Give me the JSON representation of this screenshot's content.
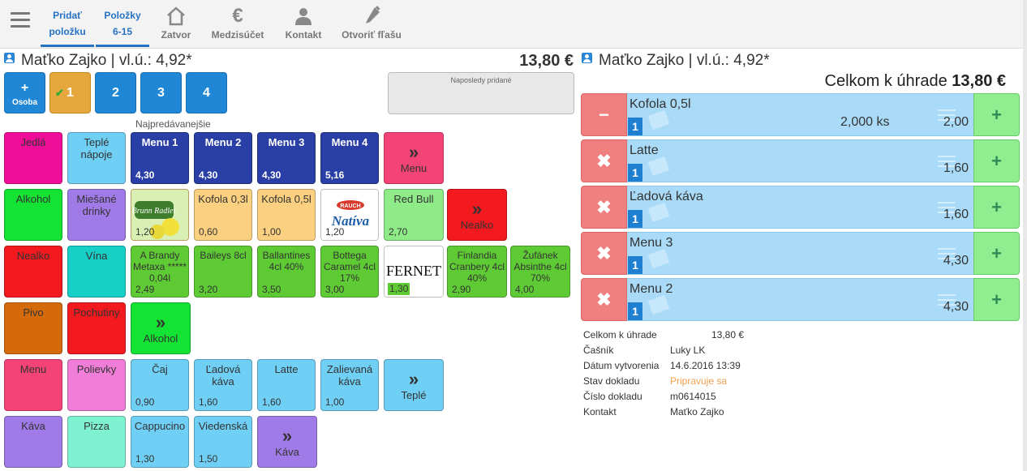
{
  "toolbar": {
    "tabs": [
      {
        "line1": "Pridať",
        "line2": "položku"
      },
      {
        "line1": "Položky",
        "line2": "6-15"
      }
    ],
    "buttons": [
      {
        "label": "Zatvor",
        "icon": "home-icon"
      },
      {
        "label": "Medzisúčet",
        "icon": "euro-icon"
      },
      {
        "label": "Kontakt",
        "icon": "person-icon"
      },
      {
        "label": "Otvoriť fľašu",
        "icon": "bottle-icon"
      }
    ]
  },
  "customer": {
    "name": "Maťko Zajko | vl.ú.: 4,92*"
  },
  "order_total": "13,80 €",
  "seats": {
    "osoba_top": "+",
    "osoba_label": "Osoba",
    "items": [
      "1",
      "2",
      "3",
      "4"
    ]
  },
  "last_added_label": "Naposledy pridané",
  "best_selling_label": "Najpredávanejšie",
  "tiles": [
    {
      "label": "Jedlá",
      "price": "",
      "color": "#f00d97"
    },
    {
      "label": "Teplé nápoje",
      "price": "",
      "color": "#6fcff4"
    },
    {
      "label": "Menu 1",
      "price": "4,30",
      "color": "#2a3fa6"
    },
    {
      "label": "Menu 2",
      "price": "4,30",
      "color": "#2a3fa6"
    },
    {
      "label": "Menu 3",
      "price": "4,30",
      "color": "#2a3fa6"
    },
    {
      "label": "Menu 4",
      "price": "5,16",
      "color": "#2a3fa6"
    },
    {
      "label": "Menu",
      "price": "",
      "color": "#f34377"
    },
    {
      "label": "Alkohol",
      "price": "",
      "color": "#13e332"
    },
    {
      "label": "Miešané drinky",
      "price": "",
      "color": "#a07be7"
    },
    {
      "label": "",
      "price": "1,20",
      "color": "#fbd081"
    },
    {
      "label": "Kofola 0,3l",
      "price": "0,60",
      "color": "#fbd081"
    },
    {
      "label": "Kofola 0,5l",
      "price": "1,00",
      "color": "#fbd081"
    },
    {
      "label": "",
      "price": "1,20",
      "color": "#fbd081"
    },
    {
      "label": "Red Bull",
      "price": "2,70",
      "color": "#8fea88"
    },
    {
      "label": "Nealko",
      "price": "",
      "color": "#f2191f"
    },
    {
      "label": "Nealko",
      "price": "",
      "color": "#f2191f"
    },
    {
      "label": "Vína",
      "price": "",
      "color": "#17cfc7"
    },
    {
      "label": "A Brandy Metaxa ***** 0,04l",
      "price": "2,49",
      "color": "#5fcb34"
    },
    {
      "label": "Baileys 8cl",
      "price": "3,20",
      "color": "#5fcb34"
    },
    {
      "label": "Ballantines 4cl 40%",
      "price": "3,50",
      "color": "#5fcb34"
    },
    {
      "label": "Bottega Caramel 4cl 17%",
      "price": "3,00",
      "color": "#5fcb34"
    },
    {
      "label": "",
      "price": "1,30",
      "color": "#5fcb34"
    },
    {
      "label": "Finlandia Cranbery 4cl 40%",
      "price": "2,90",
      "color": "#5fcb34"
    },
    {
      "label": "Žufánek Absinthe 4cl 70%",
      "price": "4,00",
      "color": "#5fcb34"
    },
    {
      "label": "Pivo",
      "price": "",
      "color": "#d46a0a"
    },
    {
      "label": "Pochutiny",
      "price": "",
      "color": "#f2191f"
    },
    {
      "label": "Alkohol",
      "price": "",
      "color": "#13e332"
    },
    {
      "label": "Menu",
      "price": "",
      "color": "#f34377"
    },
    {
      "label": "Polievky",
      "price": "",
      "color": "#f07ed8"
    },
    {
      "label": "Čaj",
      "price": "0,90",
      "color": "#6fcff4"
    },
    {
      "label": "Ľadová káva",
      "price": "1,60",
      "color": "#6fcff4"
    },
    {
      "label": "Latte",
      "price": "1,60",
      "color": "#6fcff4"
    },
    {
      "label": "Zalievaná káva",
      "price": "1,00",
      "color": "#6fcff4"
    },
    {
      "label": "Teplé",
      "price": "",
      "color": "#6fcff4"
    },
    {
      "label": "Káva",
      "price": "",
      "color": "#a07be7"
    },
    {
      "label": "Pizza",
      "price": "",
      "color": "#7ff2d2"
    },
    {
      "label": "Cappucino",
      "price": "1,30",
      "color": "#6fcff4"
    },
    {
      "label": "Viedenská",
      "price": "1,50",
      "color": "#6fcff4"
    },
    {
      "label": "Káva",
      "price": "",
      "color": "#a07be7"
    }
  ],
  "tile_images": {
    "bottle1": "Brunn Radler",
    "bottle2_brand": "RAUCH",
    "bottle2": "Natíva",
    "fernet": "FERNET"
  },
  "right": {
    "customer": "Maťko Zajko | vl.ú.: 4,92*",
    "total_label": "Celkom k úhrade",
    "total_value": "13,80 €",
    "lines": [
      {
        "name": "Kofola 0,5l",
        "qty": "1",
        "ks": "2,000 ks",
        "price": "2,00",
        "del": "−"
      },
      {
        "name": "Latte",
        "qty": "1",
        "ks": "",
        "price": "1,60",
        "del": "✖"
      },
      {
        "name": "Ľadová káva",
        "qty": "1",
        "ks": "",
        "price": "1,60",
        "del": "✖"
      },
      {
        "name": "Menu 3",
        "qty": "1",
        "ks": "",
        "price": "4,30",
        "del": "✖"
      },
      {
        "name": "Menu 2",
        "qty": "1",
        "ks": "",
        "price": "4,30",
        "del": "✖"
      }
    ],
    "add_symbol": "+",
    "info": [
      {
        "k": "Celkom k úhrade",
        "v": "13,80 €"
      },
      {
        "k": "Čašník",
        "v": "Luky LK"
      },
      {
        "k": "Dátum vytvorenia",
        "v": "14.6.2016 13:39"
      },
      {
        "k": "Stav dokladu",
        "v": "Pripravuje sa"
      },
      {
        "k": "Číslo dokladu",
        "v": "m0614015"
      },
      {
        "k": "Kontakt",
        "v": "Maťko Zajko"
      }
    ]
  }
}
